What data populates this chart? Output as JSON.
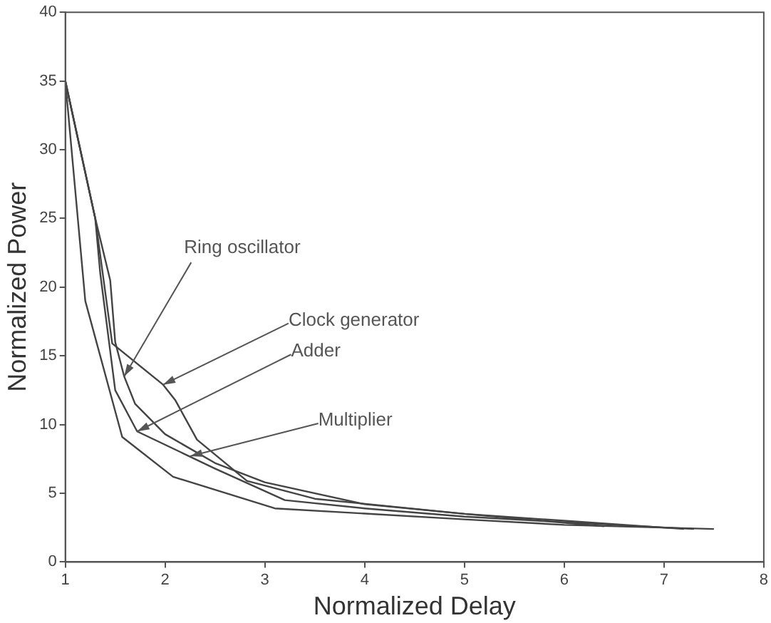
{
  "chart_data": {
    "type": "line",
    "xlabel": "Normalized Delay",
    "ylabel": "Normalized Power",
    "xlim": [
      1,
      8
    ],
    "xticks": [
      1,
      2,
      3,
      4,
      5,
      6,
      7,
      8
    ],
    "ylim": [
      0,
      40
    ],
    "yticks": [
      0,
      5,
      10,
      15,
      20,
      25,
      30,
      35,
      40
    ],
    "grid": false,
    "legend": false,
    "marker": "none",
    "line_style": "solid",
    "series": [
      {
        "color": "#444444",
        "x": [
          1,
          1.3,
          1.45,
          1.5,
          1.59,
          1.7,
          2,
          2.5,
          3,
          4,
          5,
          6,
          7.2
        ],
        "values": [
          35,
          25,
          20.5,
          16,
          13.5,
          11.5,
          9.3,
          7.2,
          5.8,
          4.2,
          3.5,
          3,
          2.4
        ]
      },
      {
        "color": "#444444",
        "x": [
          1,
          1.3,
          1.47,
          1.98,
          2.1,
          2.32,
          2.82,
          3.5,
          5,
          6.4
        ],
        "values": [
          35,
          25,
          15.9,
          12.9,
          11.8,
          8.9,
          5.9,
          4.6,
          3.5,
          2.6
        ]
      },
      {
        "color": "#444444",
        "x": [
          1,
          1.3,
          1.35,
          1.5,
          1.72,
          2.5,
          3.2,
          4,
          5,
          6.5,
          7.3
        ],
        "values": [
          35,
          25,
          21,
          12.5,
          9.5,
          6.8,
          4.5,
          3.9,
          3.3,
          2.7,
          2.4
        ]
      },
      {
        "color": "#444444",
        "x": [
          1,
          1.2,
          1.57,
          2.08,
          3.1,
          5,
          6,
          7.5
        ],
        "values": [
          35,
          19,
          9.1,
          6.2,
          3.9,
          3.1,
          2.7,
          2.4
        ]
      }
    ],
    "annotations": [
      {
        "text": "Ring oscillator",
        "x": 1.59,
        "y": 13.5
      },
      {
        "text": "Clock generator",
        "x": 1.98,
        "y": 12.9
      },
      {
        "text": "Adder",
        "x": 1.72,
        "y": 9.5
      },
      {
        "text": "Multiplier",
        "x": 2.25,
        "y": 7.7
      }
    ]
  }
}
